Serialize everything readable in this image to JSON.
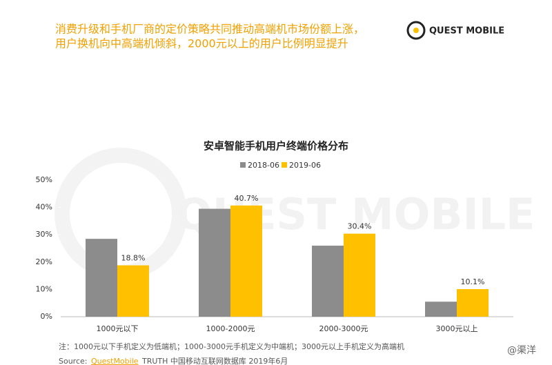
{
  "header": {
    "headline": [
      "消费升级和手机厂商的定价策略共同推动高端机市场份额上涨，",
      "用户换机向中高端机倾斜，2000元以上的用户比例明显提升"
    ],
    "logo": "QUEST MOBILE"
  },
  "watermark": "QUEST MOBILE",
  "chart_data": {
    "type": "bar",
    "title": "安卓智能手机用户终端价格分布",
    "categories": [
      "1000元以下",
      "1000-2000元",
      "2000-3000元",
      "3000元以上"
    ],
    "series": [
      {
        "name": "2018-06",
        "color": "#8c8c8c",
        "values": [
          28.5,
          39.5,
          26,
          5.5
        ]
      },
      {
        "name": "2019-06",
        "color": "#ffc000",
        "values": [
          18.8,
          40.7,
          30.4,
          10.1
        ],
        "value_labels": [
          "18.8%",
          "40.7%",
          "30.4%",
          "10.1%"
        ]
      }
    ],
    "ylim": [
      0,
      50
    ],
    "yticks": [
      {
        "value": 0,
        "label": "0%"
      },
      {
        "value": 10,
        "label": "10%"
      },
      {
        "value": 20,
        "label": "20%"
      },
      {
        "value": 30,
        "label": "30%"
      },
      {
        "value": 40,
        "label": "40%"
      },
      {
        "value": 50,
        "label": "50%"
      }
    ],
    "legend": "top"
  },
  "footnote": "注：1000元以下手机定义为低端机；1000-3000元手机定义为中端机；3000元以上手机定义为高端机",
  "source": {
    "label": "Source:",
    "brand": "QuestMobile",
    "text": "TRUTH 中国移动互联网数据库 2019年6月"
  },
  "credit": "@渠洋"
}
